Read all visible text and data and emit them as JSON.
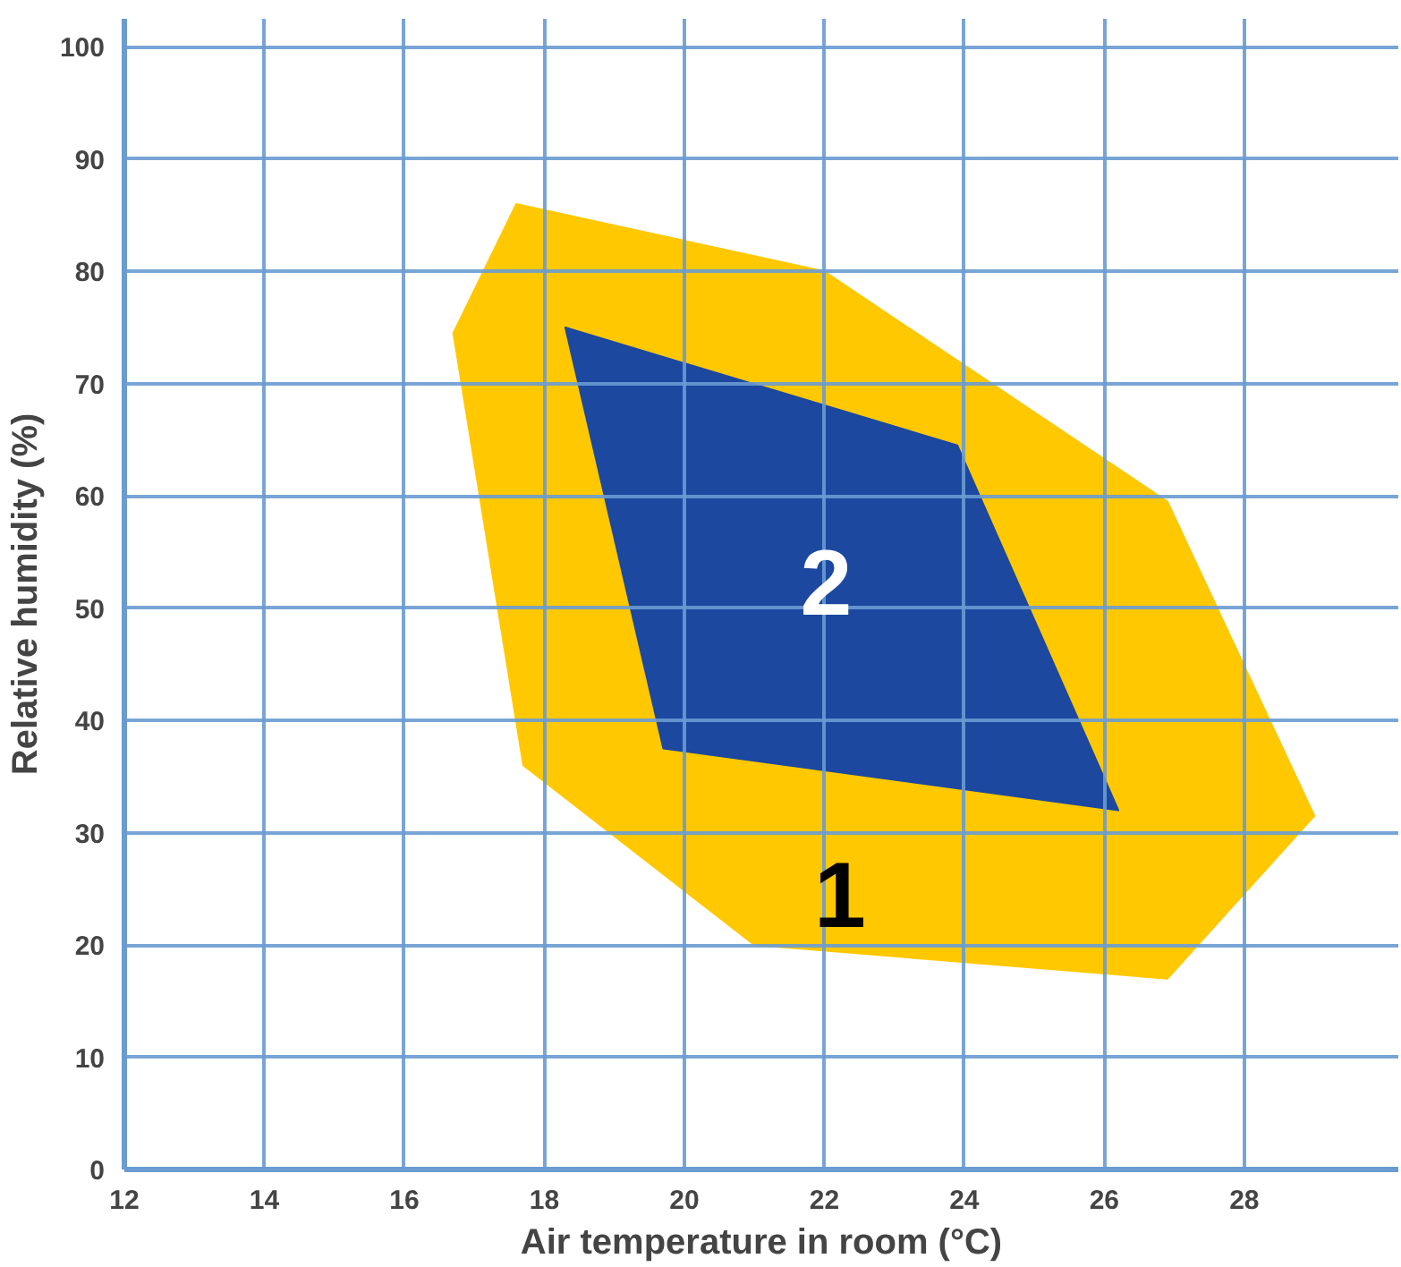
{
  "chart_data": {
    "type": "area",
    "xlabel": "Air temperature in room (°C)",
    "ylabel": "Relative humidity (%)",
    "xlim": [
      12,
      30.2
    ],
    "ylim": [
      0,
      102.5
    ],
    "xticks": [
      12,
      14,
      16,
      18,
      20,
      22,
      24,
      26,
      28
    ],
    "yticks": [
      0,
      10,
      20,
      30,
      40,
      50,
      60,
      70,
      80,
      90,
      100
    ],
    "grid": true,
    "series": [
      {
        "name": "1",
        "color": "#ffc800",
        "x": [
          17.6,
          22,
          26.9,
          29,
          26.9,
          21,
          17.7,
          16.7
        ],
        "values": [
          86,
          80,
          59.5,
          31.5,
          17,
          20,
          36,
          74.5
        ]
      },
      {
        "name": "2",
        "color": "#1c48a0",
        "x": [
          18.3,
          23.9,
          26.2,
          19.7
        ],
        "values": [
          75,
          64.5,
          32,
          37.5
        ]
      }
    ]
  }
}
